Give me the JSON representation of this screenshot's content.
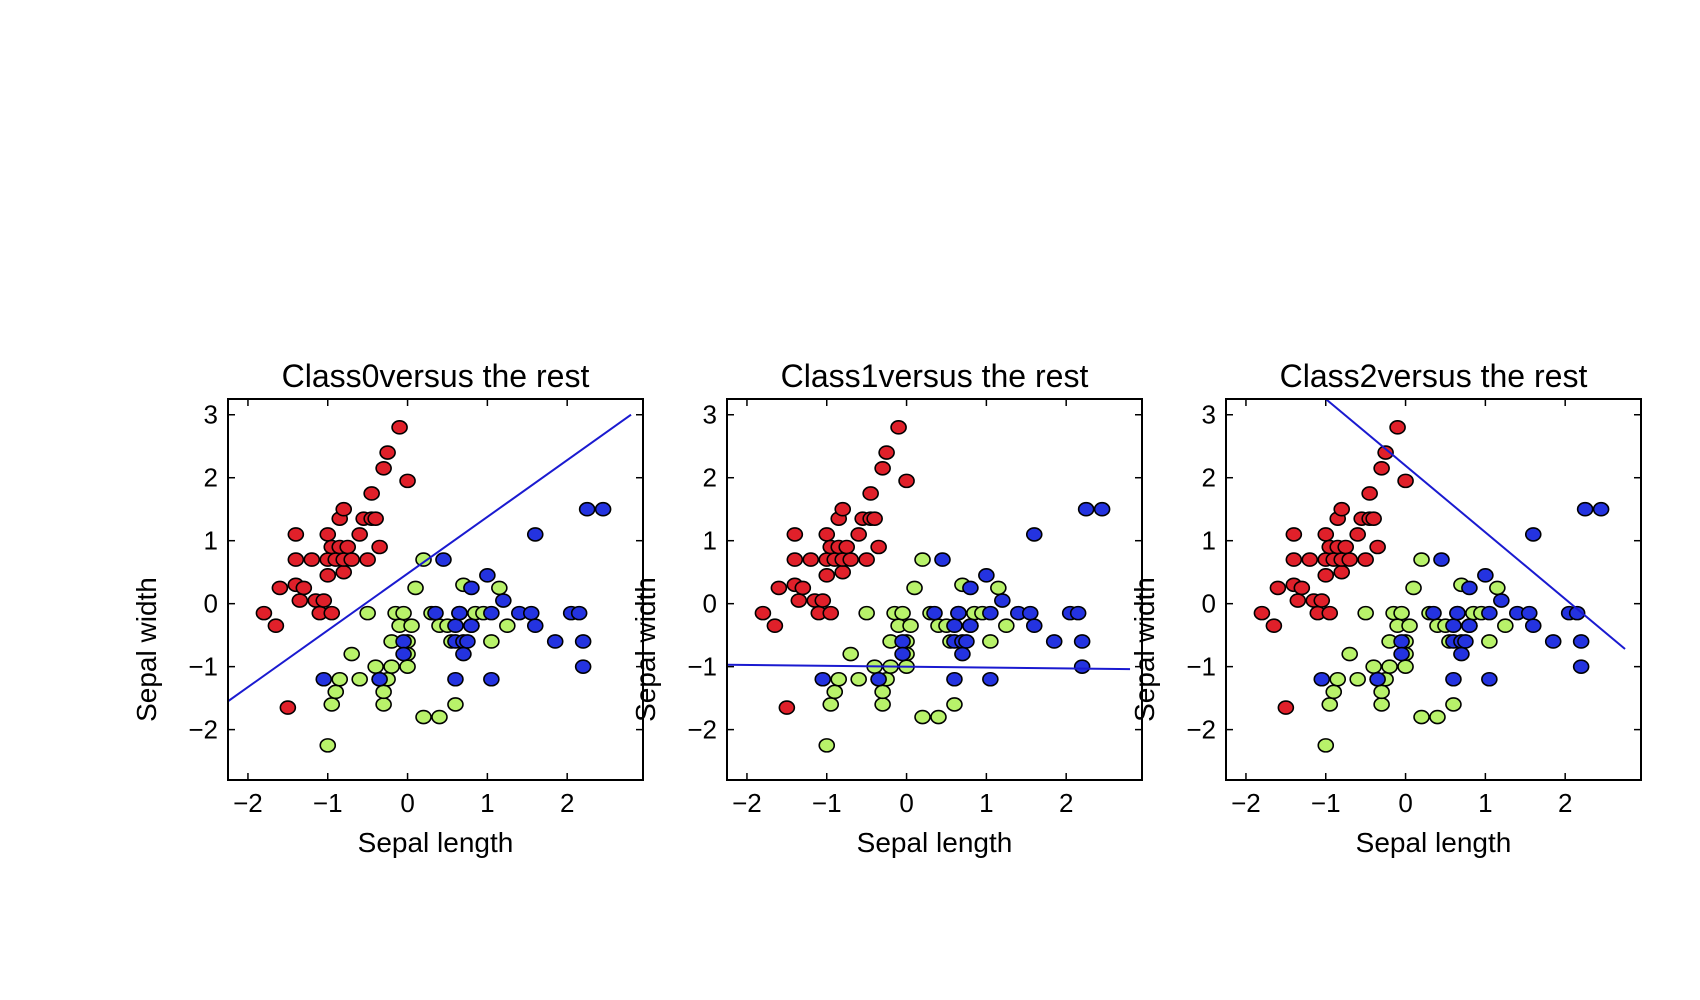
{
  "chart_data": [
    {
      "type": "scatter",
      "title": "Class0versus the rest",
      "xlabel": "Sepal length",
      "ylabel": "Sepal width",
      "xlim": [
        -2.25,
        2.95
      ],
      "ylim": [
        -2.8,
        3.25
      ],
      "xticks": [
        -2,
        -1,
        0,
        1,
        2
      ],
      "yticks": [
        -2,
        -1,
        0,
        1,
        2,
        3
      ],
      "tick_labels_x": [
        "−2",
        "−1",
        "0",
        "1",
        "2"
      ],
      "tick_labels_y": [
        "−2",
        "−1",
        "0",
        "1",
        "2",
        "3"
      ],
      "line": {
        "x": [
          -2.25,
          2.8
        ],
        "y": [
          -1.55,
          3.0
        ],
        "color": "#1a1ad0"
      },
      "grid": false
    },
    {
      "type": "scatter",
      "title": "Class1versus the rest",
      "xlabel": "Sepal length",
      "ylabel": "Sepal width",
      "xlim": [
        -2.25,
        2.95
      ],
      "ylim": [
        -2.8,
        3.25
      ],
      "xticks": [
        -2,
        -1,
        0,
        1,
        2
      ],
      "yticks": [
        -2,
        -1,
        0,
        1,
        2,
        3
      ],
      "tick_labels_x": [
        "−2",
        "−1",
        "0",
        "1",
        "2"
      ],
      "tick_labels_y": [
        "−2",
        "−1",
        "0",
        "1",
        "2",
        "3"
      ],
      "line": {
        "x": [
          -2.25,
          2.8
        ],
        "y": [
          -0.97,
          -1.04
        ],
        "color": "#1a1ad0"
      },
      "grid": false
    },
    {
      "type": "scatter",
      "title": "Class2versus the rest",
      "xlabel": "Sepal length",
      "ylabel": "Sepal width",
      "xlim": [
        -2.25,
        2.95
      ],
      "ylim": [
        -2.8,
        3.25
      ],
      "xticks": [
        -2,
        -1,
        0,
        1,
        2
      ],
      "yticks": [
        -2,
        -1,
        0,
        1,
        2,
        3
      ],
      "tick_labels_x": [
        "−2",
        "−1",
        "0",
        "1",
        "2"
      ],
      "tick_labels_y": [
        "−2",
        "−1",
        "0",
        "1",
        "2",
        "3"
      ],
      "line": {
        "x": [
          -1.0,
          2.75
        ],
        "y": [
          3.25,
          -0.72
        ],
        "color": "#1a1ad0"
      },
      "grid": false
    }
  ],
  "series": [
    {
      "color": "#e0202a",
      "points": [
        [
          -1.8,
          -0.15
        ],
        [
          -1.65,
          -0.35
        ],
        [
          -1.6,
          0.25
        ],
        [
          -1.5,
          -1.65
        ],
        [
          -1.4,
          1.1
        ],
        [
          -1.4,
          0.7
        ],
        [
          -1.4,
          0.3
        ],
        [
          -1.35,
          0.05
        ],
        [
          -1.3,
          0.25
        ],
        [
          -1.2,
          0.7
        ],
        [
          -1.15,
          0.05
        ],
        [
          -1.1,
          -0.15
        ],
        [
          -1.05,
          0.05
        ],
        [
          -1.0,
          1.1
        ],
        [
          -1.0,
          0.7
        ],
        [
          -1.0,
          0.45
        ],
        [
          -0.95,
          0.9
        ],
        [
          -0.95,
          -0.15
        ],
        [
          -0.9,
          0.7
        ],
        [
          -0.85,
          1.35
        ],
        [
          -0.85,
          0.9
        ],
        [
          -0.8,
          1.5
        ],
        [
          -0.8,
          0.5
        ],
        [
          -0.8,
          0.7
        ],
        [
          -0.75,
          0.9
        ],
        [
          -0.7,
          0.7
        ],
        [
          -0.6,
          1.1
        ],
        [
          -0.55,
          1.35
        ],
        [
          -0.5,
          0.7
        ],
        [
          -0.45,
          1.35
        ],
        [
          -0.45,
          1.75
        ],
        [
          -0.4,
          1.35
        ],
        [
          -0.35,
          0.9
        ],
        [
          -0.3,
          2.15
        ],
        [
          -0.25,
          2.4
        ],
        [
          -0.1,
          2.8
        ],
        [
          0.0,
          1.95
        ]
      ]
    },
    {
      "color": "#b8f26a",
      "points": [
        [
          -1.0,
          -2.25
        ],
        [
          -0.95,
          -1.6
        ],
        [
          -0.9,
          -1.4
        ],
        [
          -0.85,
          -1.2
        ],
        [
          -0.7,
          -0.8
        ],
        [
          -0.6,
          -1.2
        ],
        [
          -0.5,
          -0.15
        ],
        [
          -0.4,
          -1.0
        ],
        [
          -0.35,
          -1.2
        ],
        [
          -0.3,
          -1.6
        ],
        [
          -0.3,
          -1.4
        ],
        [
          -0.25,
          -1.2
        ],
        [
          -0.2,
          -1.0
        ],
        [
          -0.2,
          -0.6
        ],
        [
          -0.15,
          -0.15
        ],
        [
          -0.1,
          -0.35
        ],
        [
          -0.05,
          -0.15
        ],
        [
          0.0,
          -0.6
        ],
        [
          0.0,
          -0.8
        ],
        [
          0.0,
          -1.0
        ],
        [
          0.05,
          -0.35
        ],
        [
          0.1,
          0.25
        ],
        [
          0.2,
          0.7
        ],
        [
          0.2,
          -1.8
        ],
        [
          0.3,
          -0.15
        ],
        [
          0.4,
          -0.35
        ],
        [
          0.4,
          -1.8
        ],
        [
          0.5,
          -0.35
        ],
        [
          0.55,
          -0.6
        ],
        [
          0.6,
          -1.6
        ],
        [
          0.65,
          -0.15
        ],
        [
          0.7,
          0.3
        ],
        [
          0.8,
          -0.35
        ],
        [
          0.85,
          -0.15
        ],
        [
          0.95,
          -0.15
        ],
        [
          1.05,
          -0.6
        ],
        [
          1.15,
          0.25
        ],
        [
          1.25,
          -0.35
        ]
      ]
    },
    {
      "color": "#2433e0",
      "points": [
        [
          -1.05,
          -1.2
        ],
        [
          -0.35,
          -1.2
        ],
        [
          -0.05,
          -0.6
        ],
        [
          -0.05,
          -0.8
        ],
        [
          0.35,
          -0.15
        ],
        [
          0.45,
          0.7
        ],
        [
          0.6,
          -0.35
        ],
        [
          0.6,
          -0.6
        ],
        [
          0.6,
          -1.2
        ],
        [
          0.65,
          -0.15
        ],
        [
          0.7,
          -0.6
        ],
        [
          0.7,
          -0.8
        ],
        [
          0.75,
          -0.6
        ],
        [
          0.8,
          -0.35
        ],
        [
          0.8,
          0.25
        ],
        [
          1.0,
          0.45
        ],
        [
          1.05,
          -0.15
        ],
        [
          1.05,
          -1.2
        ],
        [
          1.2,
          0.05
        ],
        [
          1.4,
          -0.15
        ],
        [
          1.55,
          -0.15
        ],
        [
          1.6,
          1.1
        ],
        [
          1.6,
          -0.35
        ],
        [
          1.85,
          -0.6
        ],
        [
          2.05,
          -0.15
        ],
        [
          2.15,
          -0.15
        ],
        [
          2.2,
          -0.6
        ],
        [
          2.2,
          -1.0
        ],
        [
          2.25,
          1.5
        ],
        [
          2.45,
          1.5
        ]
      ]
    }
  ]
}
